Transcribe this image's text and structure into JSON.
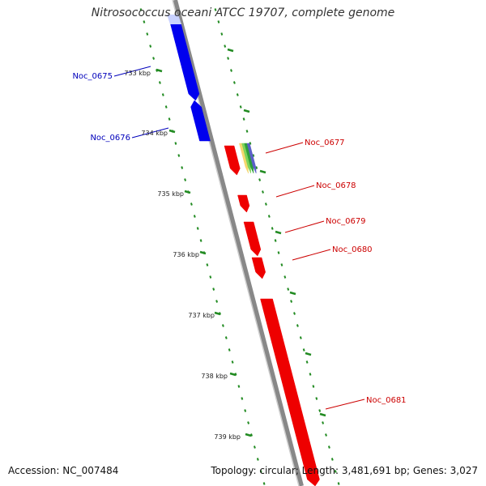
{
  "title": "Nitrosococcus oceani ATCC 19707, complete genome",
  "footer": {
    "accession": "Accession: NC_007484",
    "summary": "Topology: circular; Length: 3,481,691 bp; Genes: 3,027"
  },
  "colors": {
    "backbone": "#888888",
    "reverse_gene": "#0000ee",
    "forward_gene": "#ee0000",
    "tick": "#228b22",
    "label_forward": "#cc0000",
    "label_reverse": "#0000bb",
    "multi_gene": [
      "#f5d76e",
      "#7cd35a",
      "#2e9e3a",
      "#5b5fc7"
    ]
  },
  "ruler_labels": [
    "733 kbp",
    "734 kbp",
    "735 kbp",
    "736 kbp",
    "737 kbp",
    "738 kbp",
    "739 kbp"
  ],
  "genes": [
    {
      "name": "Noc_0675",
      "strand": "reverse"
    },
    {
      "name": "Noc_0676",
      "strand": "reverse"
    },
    {
      "name": "Noc_0677",
      "strand": "forward"
    },
    {
      "name": "Noc_0678",
      "strand": "forward"
    },
    {
      "name": "Noc_0679",
      "strand": "forward"
    },
    {
      "name": "Noc_0680",
      "strand": "forward"
    },
    {
      "name": "Noc_0681",
      "strand": "forward"
    }
  ]
}
